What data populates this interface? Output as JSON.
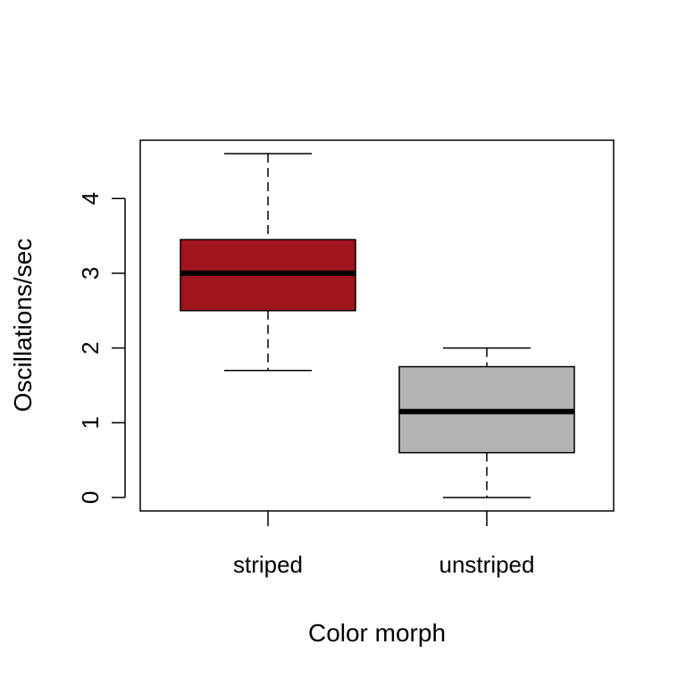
{
  "chart_data": {
    "type": "box",
    "title": "",
    "xlabel": "Color morph",
    "ylabel": "Oscillations/sec",
    "ylim": [
      -0.18,
      4.78
    ],
    "yticks": [
      "0",
      "1",
      "2",
      "3",
      "4"
    ],
    "grid": false,
    "legend": "none",
    "categories": [
      "striped",
      "unstriped"
    ],
    "boxes": [
      {
        "category": "striped",
        "min": 1.7,
        "q1": 2.5,
        "median": 3.0,
        "q3": 3.45,
        "max": 4.6,
        "color": "#a0141e"
      },
      {
        "category": "unstriped",
        "min": 0.0,
        "q1": 0.6,
        "median": 1.15,
        "q3": 1.75,
        "max": 2.0,
        "color": "#b3b3b3"
      }
    ]
  }
}
